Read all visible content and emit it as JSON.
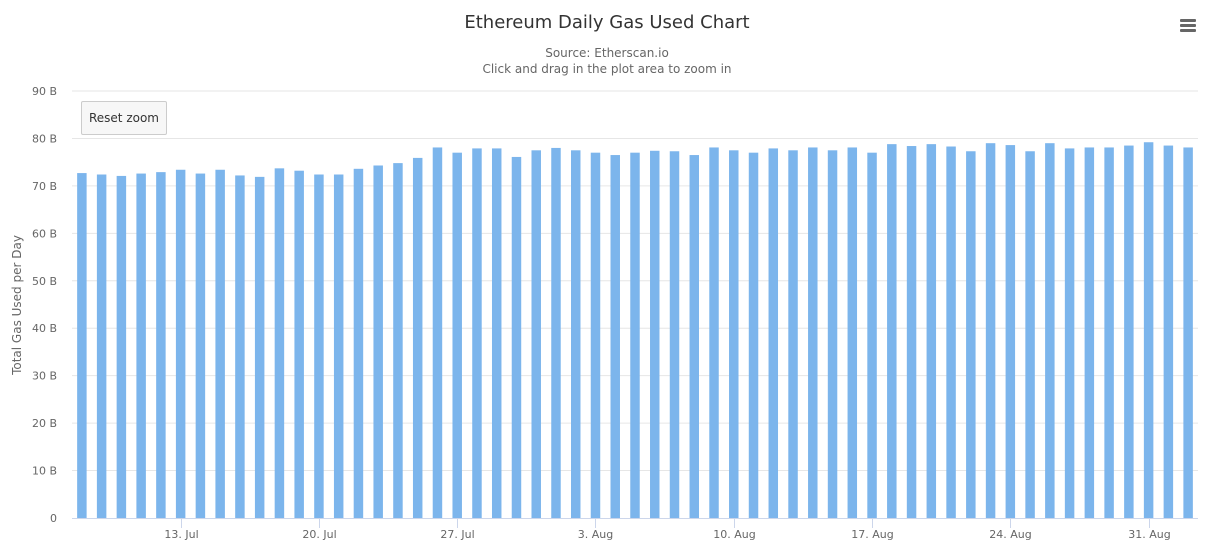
{
  "header": {
    "title": "Ethereum Daily Gas Used Chart",
    "source": "Source: Etherscan.io",
    "hint": "Click and drag in the plot area to zoom in"
  },
  "toolbar": {
    "reset_zoom_label": "Reset zoom",
    "menu_icon": "hamburger-menu-icon"
  },
  "chart_data": {
    "type": "bar",
    "title": "Ethereum Daily Gas Used Chart",
    "subtitle": "Source: Etherscan.io",
    "ylabel": "Total Gas Used per Day",
    "xlabel": "",
    "ylim": [
      0,
      90
    ],
    "y_unit": "B",
    "y_ticks": [
      "0",
      "10 B",
      "20 B",
      "30 B",
      "40 B",
      "50 B",
      "60 B",
      "70 B",
      "80 B",
      "90 B"
    ],
    "x_ticks": [
      {
        "date": "2019-07-13",
        "label": "13. Jul"
      },
      {
        "date": "2019-07-20",
        "label": "20. Jul"
      },
      {
        "date": "2019-07-27",
        "label": "27. Jul"
      },
      {
        "date": "2019-08-03",
        "label": "3. Aug"
      },
      {
        "date": "2019-08-10",
        "label": "10. Aug"
      },
      {
        "date": "2019-08-17",
        "label": "17. Aug"
      },
      {
        "date": "2019-08-24",
        "label": "24. Aug"
      },
      {
        "date": "2019-08-31",
        "label": "31. Aug"
      }
    ],
    "grid": true,
    "legend": "none",
    "color": "#7cb5ec",
    "series": [
      {
        "dates": [
          "2019-07-08",
          "2019-07-09",
          "2019-07-10",
          "2019-07-11",
          "2019-07-12",
          "2019-07-13",
          "2019-07-14",
          "2019-07-15",
          "2019-07-16",
          "2019-07-17",
          "2019-07-18",
          "2019-07-19",
          "2019-07-20",
          "2019-07-21",
          "2019-07-22",
          "2019-07-23",
          "2019-07-24",
          "2019-07-25",
          "2019-07-26",
          "2019-07-27",
          "2019-07-28",
          "2019-07-29",
          "2019-07-30",
          "2019-07-31",
          "2019-08-01",
          "2019-08-02",
          "2019-08-03",
          "2019-08-04",
          "2019-08-05",
          "2019-08-06",
          "2019-08-07",
          "2019-08-08",
          "2019-08-09",
          "2019-08-10",
          "2019-08-11",
          "2019-08-12",
          "2019-08-13",
          "2019-08-14",
          "2019-08-15",
          "2019-08-16",
          "2019-08-17",
          "2019-08-18",
          "2019-08-19",
          "2019-08-20",
          "2019-08-21",
          "2019-08-22",
          "2019-08-23",
          "2019-08-24",
          "2019-08-25",
          "2019-08-26",
          "2019-08-27",
          "2019-08-28",
          "2019-08-29",
          "2019-08-30",
          "2019-08-31",
          "2019-09-01",
          "2019-09-02"
        ],
        "values": [
          72.7,
          72.4,
          72.1,
          72.6,
          72.9,
          73.4,
          72.6,
          73.4,
          72.2,
          71.9,
          73.7,
          73.2,
          72.4,
          72.4,
          73.6,
          74.3,
          74.8,
          75.9,
          78.1,
          77.0,
          77.9,
          77.9,
          76.1,
          77.5,
          78.0,
          77.5,
          77.0,
          76.5,
          77.0,
          77.4,
          77.3,
          76.5,
          78.1,
          77.5,
          77.0,
          77.9,
          77.5,
          78.1,
          77.5,
          78.1,
          77.0,
          78.8,
          78.4,
          78.8,
          78.3,
          77.3,
          79.0,
          78.6,
          77.3,
          79.0,
          77.9,
          78.1,
          78.1,
          78.5,
          79.2,
          78.5,
          78.1
        ]
      }
    ]
  }
}
